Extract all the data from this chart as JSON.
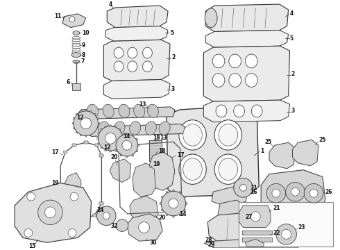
{
  "background_color": "#ffffff",
  "fig_width": 4.9,
  "fig_height": 3.6,
  "dpi": 100,
  "label_fontsize": 5.5,
  "label_color": "#111111",
  "line_color": "#333333",
  "part_fill": "#f2f2f2",
  "part_edge": "#444444"
}
